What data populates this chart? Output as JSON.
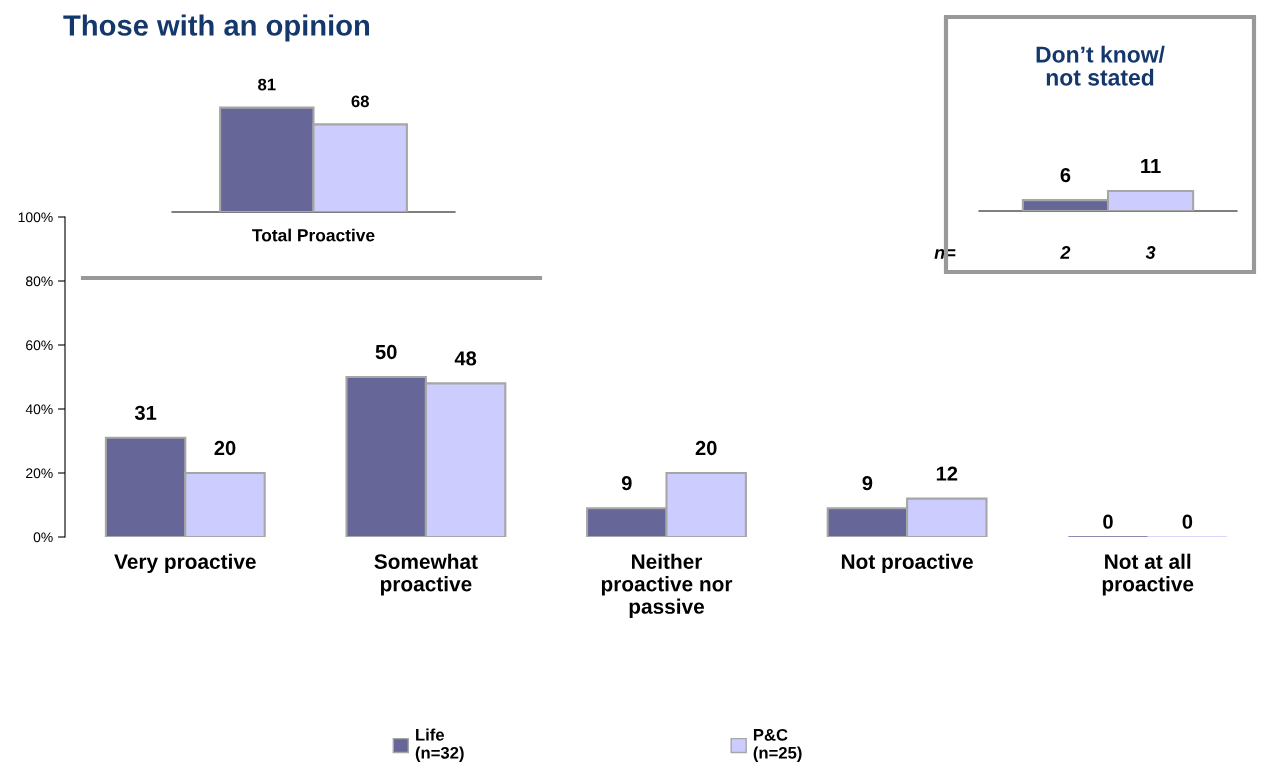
{
  "chart_data": [
    {
      "type": "bar",
      "categories": [
        "Very proactive",
        "Somewhat\nproactive",
        "Neither\nproactive nor\npassive",
        "Not proactive",
        "Not at all\nproactive"
      ],
      "series": [
        {
          "name": "Life\n(n=32)",
          "color": "#666699",
          "values": [
            31,
            50,
            9,
            9,
            0
          ]
        },
        {
          "name": "P&C\n(n=25)",
          "color": "#ccccff",
          "values": [
            20,
            48,
            20,
            12,
            0
          ]
        }
      ],
      "ylim": [
        0,
        100
      ],
      "yticks": [
        {
          "value": 0,
          "label": "0%"
        },
        {
          "value": 20,
          "label": "20%"
        },
        {
          "value": 40,
          "label": "40%"
        },
        {
          "value": 60,
          "label": "60%"
        },
        {
          "value": 80,
          "label": "80%"
        },
        {
          "value": 100,
          "label": "100%"
        }
      ],
      "data_labels": true,
      "legend": "bottom"
    },
    {
      "type": "bar",
      "title": "Those with an opinion",
      "xlabel": "Total Proactive",
      "categories": [
        null
      ],
      "series": [
        {
          "color": "#666699",
          "values": [
            81
          ]
        },
        {
          "color": "#ccccff",
          "values": [
            68
          ]
        }
      ],
      "data_labels": true
    },
    {
      "type": "bar",
      "title": "Don’t know/\nnot stated",
      "categories": [
        null
      ],
      "series": [
        {
          "color": "#666699",
          "values": [
            6
          ]
        },
        {
          "color": "#ccccff",
          "values": [
            11
          ]
        }
      ],
      "data_labels": true,
      "annotations": [
        "n=",
        "2",
        "3"
      ]
    }
  ]
}
